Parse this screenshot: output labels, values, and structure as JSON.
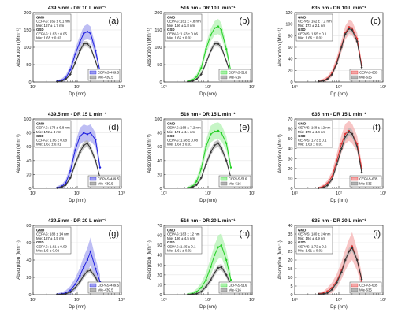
{
  "figure": {
    "colors": {
      "grid": "#e6e6e6",
      "axis": "#333333",
      "mie": "#333333",
      "mie_fill": "#b4b4b4"
    },
    "x_tick_labels": [
      "10¹",
      "10²",
      "10³"
    ],
    "ylabel_text": "Absorption (Mm⁻¹)",
    "xlabel_text": "Dp (nm)"
  },
  "chart_data": [
    {
      "type": "line",
      "letter": "(a)",
      "title": "439.5 nm - DR 10 L min⁻¹",
      "xlabel": "Dp (nm)",
      "ylabel": "Absorption (Mm⁻¹)",
      "xscale": "log",
      "xlim": [
        10,
        1000
      ],
      "ylim": [
        0,
        200
      ],
      "yticks": [
        0,
        50,
        100,
        150,
        200
      ],
      "grid": true,
      "legend_position": "bottom-right",
      "color": "#1f1fe0",
      "fill": "#9b9bee",
      "annotation": [
        "GMD",
        "CEPAS: 165 ± 6.1 nm",
        "Mie: 167 ± 1.7 nm",
        "GSD",
        "CEPAS: 1.63 ± 0.05",
        "Mie: 1.65 ± 0.02"
      ],
      "legend": [
        "CEPAS-439.5",
        "Mie-439.5"
      ],
      "x": [
        35,
        45,
        55,
        70,
        90,
        115,
        140,
        170,
        200,
        260,
        330
      ],
      "series": [
        {
          "name": "CEPAS-439.5",
          "values": [
            2,
            5,
            12,
            35,
            80,
            115,
            140,
            145,
            140,
            90,
            30
          ],
          "band": [
            3,
            5,
            8,
            12,
            15,
            18,
            20,
            22,
            20,
            15,
            8
          ]
        },
        {
          "name": "Mie-439.5",
          "values": [
            1,
            3,
            8,
            22,
            55,
            90,
            110,
            110,
            100,
            60,
            20
          ],
          "band": [
            1,
            2,
            3,
            5,
            6,
            7,
            8,
            8,
            7,
            5,
            3
          ]
        }
      ]
    },
    {
      "type": "line",
      "letter": "(b)",
      "title": "516 nm - DR 10 L min⁻¹",
      "xlabel": "Dp (nm)",
      "ylabel": "Absorption (Mm⁻¹)",
      "xscale": "log",
      "xlim": [
        10,
        1000
      ],
      "ylim": [
        0,
        200
      ],
      "yticks": [
        0,
        50,
        100,
        150,
        200
      ],
      "grid": true,
      "legend_position": "bottom-right",
      "color": "#22d022",
      "fill": "#a8f0a8",
      "annotation": [
        "GMD",
        "CEPAS: 161 ± 4.8 nm",
        "Mie: 166 ± 1.8 nm",
        "GSD",
        "CEPAS: 1.63 ± 0.06",
        "Mie: 1.65 ± 0.02"
      ],
      "legend": [
        "CEPAS-516",
        "Mie-516"
      ],
      "x": [
        35,
        45,
        55,
        70,
        90,
        115,
        140,
        170,
        200,
        260,
        330
      ],
      "series": [
        {
          "name": "CEPAS-516",
          "values": [
            2,
            6,
            15,
            40,
            95,
            135,
            155,
            160,
            150,
            95,
            30
          ],
          "band": [
            3,
            5,
            8,
            12,
            15,
            18,
            20,
            22,
            20,
            15,
            8
          ]
        },
        {
          "name": "Mie-516",
          "values": [
            1,
            3,
            8,
            22,
            55,
            90,
            110,
            110,
            100,
            60,
            20
          ],
          "band": [
            1,
            2,
            3,
            5,
            6,
            7,
            8,
            8,
            7,
            5,
            3
          ]
        }
      ]
    },
    {
      "type": "line",
      "letter": "(c)",
      "title": "635 nm - DR 10 L min⁻¹",
      "xlabel": "Dp (nm)",
      "ylabel": "Absorption (Mm⁻¹)",
      "xscale": "log",
      "xlim": [
        10,
        1000
      ],
      "ylim": [
        0,
        120
      ],
      "yticks": [
        0,
        20,
        40,
        60,
        80,
        100,
        120
      ],
      "grid": true,
      "legend_position": "bottom-right",
      "color": "#e03030",
      "fill": "#f4a6a6",
      "annotation": [
        "GMD",
        "CEPAS: 162 ± 7.2 nm",
        "Mie: 173 ± 2.1 nm",
        "GSD",
        "CEPAS: 1.65 ± 0.1",
        "Mie: 1.66 ± 0.02"
      ],
      "legend": [
        "CEPAS-635",
        "Mie-635"
      ],
      "x": [
        35,
        45,
        55,
        70,
        90,
        115,
        140,
        170,
        200,
        260,
        330
      ],
      "series": [
        {
          "name": "CEPAS-635",
          "values": [
            1,
            3,
            6,
            15,
            35,
            62,
            85,
            95,
            93,
            75,
            28
          ],
          "band": [
            2,
            3,
            4,
            6,
            8,
            10,
            12,
            12,
            12,
            10,
            6
          ]
        },
        {
          "name": "Mie-635",
          "values": [
            1,
            2,
            5,
            13,
            32,
            60,
            83,
            92,
            90,
            70,
            25
          ],
          "band": [
            1,
            1,
            2,
            3,
            4,
            5,
            5,
            5,
            5,
            4,
            3
          ]
        }
      ]
    },
    {
      "type": "line",
      "letter": "(d)",
      "title": "439.5 nm - DR 15 L min⁻¹",
      "xlabel": "Dp (nm)",
      "ylabel": "Absorption (Mm⁻¹)",
      "xscale": "log",
      "xlim": [
        10,
        1000
      ],
      "ylim": [
        0,
        100
      ],
      "yticks": [
        0,
        20,
        40,
        60,
        80,
        100
      ],
      "grid": true,
      "legend_position": "bottom-right",
      "color": "#1f1fe0",
      "fill": "#9b9bee",
      "annotation": [
        "GMD",
        "CEPAS: 173 ± 6.8 nm",
        "Mie: 172 ± 4 nm",
        "GSD",
        "CEPAS: 1.66 ± 0.08",
        "Mie: 1.63 ± 0.01"
      ],
      "legend": [
        "CEPAS-439.5",
        "Mie-439.5"
      ],
      "x": [
        35,
        45,
        55,
        70,
        90,
        115,
        140,
        170,
        200,
        260,
        330
      ],
      "series": [
        {
          "name": "CEPAS-439.5",
          "values": [
            1,
            3,
            8,
            25,
            55,
            75,
            80,
            78,
            80,
            70,
            30
          ],
          "band": [
            2,
            3,
            5,
            8,
            10,
            12,
            12,
            12,
            12,
            10,
            6
          ]
        },
        {
          "name": "Mie-439.5",
          "values": [
            0.5,
            2,
            5,
            15,
            35,
            52,
            62,
            65,
            58,
            40,
            15
          ],
          "band": [
            1,
            1,
            2,
            3,
            4,
            5,
            5,
            5,
            5,
            4,
            2
          ]
        }
      ]
    },
    {
      "type": "line",
      "letter": "(e)",
      "title": "516 nm - DR 15 L min⁻¹",
      "xlabel": "Dp (nm)",
      "ylabel": "Absorption (Mm⁻¹)",
      "xscale": "log",
      "xlim": [
        10,
        1000
      ],
      "ylim": [
        0,
        100
      ],
      "yticks": [
        0,
        20,
        40,
        60,
        80,
        100
      ],
      "grid": true,
      "legend_position": "bottom-right",
      "color": "#22d022",
      "fill": "#a8f0a8",
      "annotation": [
        "GMD",
        "CEPAS: 168 ± 7.2 nm",
        "Mie: 171 ± 4.1 nm",
        "GSD",
        "CEPAS: 1.68 ± 0.08",
        "Mie: 1.63 ± 0.01"
      ],
      "legend": [
        "CEPAS-516",
        "Mie-516"
      ],
      "x": [
        35,
        45,
        55,
        70,
        90,
        115,
        140,
        170,
        200,
        260,
        330
      ],
      "series": [
        {
          "name": "CEPAS-516",
          "values": [
            1,
            3,
            10,
            28,
            60,
            78,
            82,
            83,
            80,
            65,
            30
          ],
          "band": [
            2,
            3,
            5,
            8,
            10,
            12,
            12,
            12,
            12,
            10,
            6
          ]
        },
        {
          "name": "Mie-516",
          "values": [
            0.5,
            2,
            5,
            15,
            35,
            52,
            62,
            65,
            58,
            40,
            15
          ],
          "band": [
            1,
            1,
            2,
            3,
            4,
            5,
            5,
            5,
            5,
            4,
            2
          ]
        }
      ]
    },
    {
      "type": "line",
      "letter": "(f)",
      "title": "635 nm - DR 15 L min⁻¹",
      "xlabel": "Dp (nm)",
      "ylabel": "Absorption (Mm⁻¹)",
      "xscale": "log",
      "xlim": [
        10,
        1000
      ],
      "ylim": [
        0,
        70
      ],
      "yticks": [
        0,
        10,
        20,
        30,
        40,
        50,
        60,
        70
      ],
      "grid": true,
      "legend_position": "bottom-right",
      "color": "#e03030",
      "fill": "#f4a6a6",
      "annotation": [
        "GMD",
        "CEPAS: 168 ± 12 nm",
        "Mie: 178 ± 4.4 nm",
        "GSD",
        "CEPAS: 1.73 ± 0.1",
        "Mie: 1.63 ± 0.01"
      ],
      "legend": [
        "CEPAS-635",
        "Mie-635"
      ],
      "x": [
        35,
        45,
        55,
        70,
        90,
        115,
        140,
        170,
        200,
        260,
        330
      ],
      "series": [
        {
          "name": "CEPAS-635",
          "values": [
            0.5,
            2,
            5,
            12,
            28,
            45,
            55,
            58,
            55,
            45,
            20
          ],
          "band": [
            1,
            2,
            3,
            5,
            7,
            9,
            10,
            10,
            10,
            8,
            5
          ]
        },
        {
          "name": "Mie-635",
          "values": [
            0.3,
            1,
            3,
            9,
            24,
            40,
            52,
            57,
            55,
            42,
            16
          ],
          "band": [
            1,
            1,
            2,
            2,
            3,
            3,
            4,
            4,
            4,
            3,
            2
          ]
        }
      ]
    },
    {
      "type": "line",
      "letter": "(g)",
      "title": "439.5 nm - DR 20 L min⁻¹",
      "xlabel": "Dp (nm)",
      "ylabel": "Absorption (Mm⁻¹)",
      "xscale": "log",
      "xlim": [
        10,
        1000
      ],
      "ylim": [
        0,
        80
      ],
      "yticks": [
        0,
        20,
        40,
        60,
        80
      ],
      "grid": true,
      "legend_position": "bottom-right",
      "color": "#1f1fe0",
      "fill": "#9b9bee",
      "annotation": [
        "GMD",
        "CEPAS: 188 ± 14 nm",
        "Mie: 187 ± 4.5 nm",
        "GSD",
        "CEPAS: 1.61 ± 0.09",
        "Mie: 1.6 ± 0.02"
      ],
      "legend": [
        "CEPAS-439.5",
        "Mie-439.5"
      ],
      "x": [
        35,
        45,
        55,
        70,
        90,
        115,
        140,
        170,
        200,
        260,
        330
      ],
      "series": [
        {
          "name": "CEPAS-439.5",
          "values": [
            0.5,
            1,
            2,
            5,
            12,
            22,
            32,
            40,
            50,
            30,
            15
          ],
          "band": [
            1,
            2,
            3,
            5,
            7,
            9,
            12,
            14,
            16,
            12,
            8
          ]
        },
        {
          "name": "Mie-439.5",
          "values": [
            0.3,
            0.5,
            1,
            3,
            8,
            15,
            22,
            27,
            28,
            20,
            10
          ],
          "band": [
            1,
            1,
            1,
            2,
            2,
            3,
            3,
            3,
            3,
            3,
            2
          ]
        }
      ]
    },
    {
      "type": "line",
      "letter": "(h)",
      "title": "516 nm - DR 20 L min⁻¹",
      "xlabel": "Dp (nm)",
      "ylabel": "Absorption (Mm⁻¹)",
      "xscale": "log",
      "xlim": [
        10,
        1000
      ],
      "ylim": [
        0,
        70
      ],
      "yticks": [
        0,
        10,
        20,
        30,
        40,
        50,
        60,
        70
      ],
      "grid": true,
      "legend_position": "bottom-right",
      "color": "#22d022",
      "fill": "#a8f0a8",
      "annotation": [
        "GMD",
        "CEPAS: 183 ± 12 nm",
        "Mie: 186 ± 4.5 nm",
        "GSD",
        "CEPAS: 1.65 ± 0.1",
        "Mie: 1.61 ± 0.02"
      ],
      "legend": [
        "CEPAS-516",
        "Mie-516"
      ],
      "x": [
        35,
        45,
        55,
        70,
        90,
        115,
        140,
        170,
        200,
        260,
        330
      ],
      "series": [
        {
          "name": "CEPAS-516",
          "values": [
            0.5,
            1,
            3,
            7,
            15,
            28,
            40,
            48,
            50,
            35,
            15
          ],
          "band": [
            1,
            2,
            3,
            5,
            7,
            9,
            10,
            12,
            12,
            10,
            6
          ]
        },
        {
          "name": "Mie-516",
          "values": [
            0.3,
            0.5,
            1,
            3,
            8,
            15,
            22,
            27,
            28,
            20,
            10
          ],
          "band": [
            1,
            1,
            1,
            2,
            2,
            3,
            3,
            3,
            3,
            3,
            2
          ]
        }
      ]
    },
    {
      "type": "line",
      "letter": "(i)",
      "title": "635 nm - DR 20 L min⁻¹",
      "xlabel": "Dp (nm)",
      "ylabel": "Absorption (Mm⁻¹)",
      "xscale": "log",
      "xlim": [
        10,
        1000
      ],
      "ylim": [
        0,
        40
      ],
      "yticks": [
        0,
        5,
        10,
        15,
        20,
        25,
        30,
        35,
        40
      ],
      "grid": true,
      "legend_position": "bottom-right",
      "color": "#e03030",
      "fill": "#f4a6a6",
      "annotation": [
        "GMD",
        "CEPAS: 180 ± 24 nm",
        "Mie: 194 ± 4.9 nm",
        "GSD",
        "CEPAS: 1.72 ± 0.2",
        "Mie: 1.61 ± 0.02"
      ],
      "legend": [
        "CEPAS-635",
        "Mie-635"
      ],
      "x": [
        35,
        45,
        55,
        70,
        90,
        115,
        140,
        170,
        200,
        260,
        330
      ],
      "series": [
        {
          "name": "CEPAS-635",
          "values": [
            0.5,
            1,
            2,
            4,
            8,
            14,
            20,
            25,
            28,
            20,
            8
          ],
          "band": [
            1,
            1,
            2,
            3,
            4,
            5,
            6,
            7,
            8,
            6,
            4
          ]
        },
        {
          "name": "Mie-635",
          "values": [
            0.3,
            0.5,
            1,
            3,
            7,
            13,
            20,
            25,
            27,
            20,
            9
          ],
          "band": [
            1,
            1,
            1,
            1,
            2,
            2,
            2,
            2,
            2,
            2,
            1
          ]
        }
      ]
    }
  ]
}
